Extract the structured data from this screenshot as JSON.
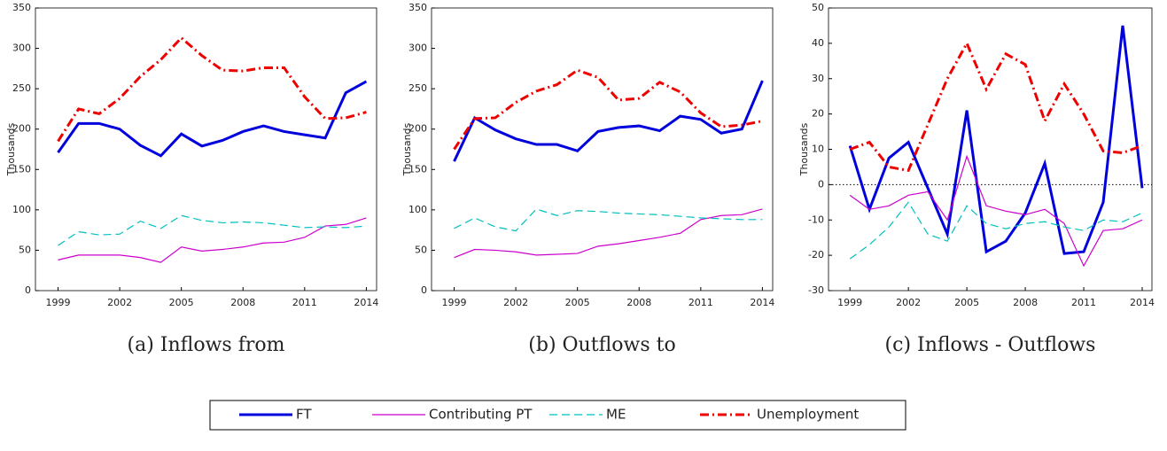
{
  "chart_data": [
    {
      "type": "line",
      "title": "(a) Inflows from",
      "y_label": "Thousands",
      "x": [
        1999,
        2000,
        2001,
        2002,
        2003,
        2004,
        2005,
        2006,
        2007,
        2008,
        2009,
        2010,
        2011,
        2012,
        2013,
        2014
      ],
      "xlim": [
        1997.9,
        2014.5
      ],
      "xticks": [
        1999,
        2002,
        2005,
        2008,
        2011,
        2014
      ],
      "ylim": [
        0,
        350
      ],
      "yticks": [
        0,
        50,
        100,
        150,
        200,
        250,
        300,
        350
      ],
      "series": [
        {
          "values": [
            171,
            207,
            207,
            200,
            180,
            167,
            194,
            179,
            186,
            197,
            204,
            197,
            193,
            189,
            245,
            259
          ]
        },
        {
          "values": [
            38,
            44,
            44,
            44,
            41,
            35,
            54,
            49,
            51,
            54,
            59,
            60,
            66,
            80,
            82,
            90
          ]
        },
        {
          "values": [
            56,
            73,
            69,
            70,
            86,
            77,
            93,
            87,
            84,
            85,
            84,
            81,
            78,
            79,
            78,
            80
          ]
        },
        {
          "values": [
            185,
            225,
            219,
            238,
            265,
            286,
            313,
            291,
            273,
            272,
            276,
            276,
            240,
            213,
            214,
            221
          ]
        }
      ]
    },
    {
      "type": "line",
      "title": "(b) Outflows to",
      "y_label": "Thousands",
      "x": [
        1999,
        2000,
        2001,
        2002,
        2003,
        2004,
        2005,
        2006,
        2007,
        2008,
        2009,
        2010,
        2011,
        2012,
        2013,
        2014
      ],
      "xlim": [
        1997.9,
        2014.5
      ],
      "xticks": [
        1999,
        2002,
        2005,
        2008,
        2011,
        2014
      ],
      "ylim": [
        0,
        350
      ],
      "yticks": [
        0,
        50,
        100,
        150,
        200,
        250,
        300,
        350
      ],
      "series": [
        {
          "values": [
            160,
            214,
            199,
            188,
            181,
            181,
            173,
            197,
            202,
            204,
            198,
            216,
            212,
            195,
            200,
            260
          ]
        },
        {
          "values": [
            41,
            51,
            50,
            48,
            44,
            45,
            46,
            55,
            58,
            62,
            66,
            71,
            88,
            93,
            94,
            101
          ]
        },
        {
          "values": [
            77,
            90,
            79,
            74,
            101,
            93,
            99,
            98,
            96,
            95,
            94,
            92,
            90,
            89,
            88,
            88
          ]
        },
        {
          "values": [
            175,
            213,
            214,
            233,
            247,
            255,
            273,
            264,
            236,
            238,
            258,
            246,
            220,
            203,
            205,
            210
          ]
        }
      ]
    },
    {
      "type": "line",
      "title": "(c) Inflows - Outflows",
      "y_label": "Thousands",
      "x": [
        1999,
        2000,
        2001,
        2002,
        2003,
        2004,
        2005,
        2006,
        2007,
        2008,
        2009,
        2010,
        2011,
        2012,
        2013,
        2014
      ],
      "xlim": [
        1997.9,
        2014.5
      ],
      "xticks": [
        1999,
        2002,
        2005,
        2008,
        2011,
        2014
      ],
      "ylim": [
        -30,
        50
      ],
      "yticks": [
        -30,
        -20,
        -10,
        0,
        10,
        20,
        30,
        40,
        50
      ],
      "reference_line": 0,
      "series": [
        {
          "values": [
            11,
            -7,
            7.5,
            12,
            -1,
            -14,
            21,
            -19,
            -16,
            -8,
            6,
            -19.5,
            -19,
            -5,
            45,
            -1
          ]
        },
        {
          "values": [
            -3,
            -7,
            -6,
            -3,
            -2,
            -10,
            8,
            -6,
            -7.5,
            -8.5,
            -7,
            -11,
            -23,
            -13,
            -12.5,
            -10
          ]
        },
        {
          "values": [
            -21,
            -17,
            -12,
            -5,
            -14,
            -16,
            -6,
            -11,
            -12.5,
            -11,
            -10.5,
            -12,
            -13,
            -10,
            -10.5,
            -8
          ]
        },
        {
          "values": [
            10,
            12,
            5,
            4,
            17,
            30,
            40,
            27,
            37,
            34,
            18,
            28.5,
            20,
            9.5,
            9,
            11
          ]
        }
      ]
    }
  ],
  "legend": [
    {
      "name": "FT",
      "color": "#0000dd",
      "width": 3,
      "dash": "none"
    },
    {
      "name": "Contributing PT",
      "color": "#cc00cc",
      "width": 1.2,
      "dash": "none"
    },
    {
      "name": "ME",
      "color": "#00bfbf",
      "width": 1.2,
      "dash": "9 5"
    },
    {
      "name": "Unemployment",
      "color": "#ee0000",
      "width": 3,
      "dash": "10 4 2 4"
    }
  ]
}
